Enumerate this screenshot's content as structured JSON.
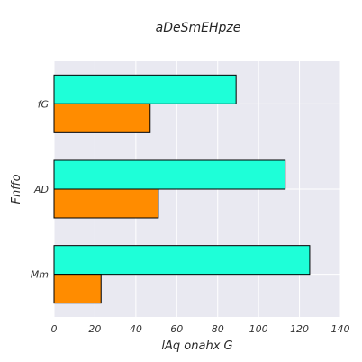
{
  "chart_data": {
    "type": "bar",
    "orientation": "horizontal",
    "title": "aDeSmEHpze",
    "xlabel": "lAq onahx G",
    "ylabel": "Fnffo",
    "categories": [
      "fG",
      "AD",
      "Mm"
    ],
    "series": [
      {
        "values": [
          89,
          113,
          125
        ],
        "color": "#1effd8"
      },
      {
        "values": [
          47,
          51,
          23
        ],
        "color": "#ff8c00"
      }
    ],
    "xlim": [
      0,
      140
    ],
    "xticks": [
      0,
      20,
      40,
      60,
      80,
      100,
      120,
      140
    ],
    "grid": true,
    "legend": "none"
  },
  "style": {
    "plot_bg": "#e9e9f1",
    "grid_color": "#ffffff",
    "bar_edge": "#000000"
  }
}
